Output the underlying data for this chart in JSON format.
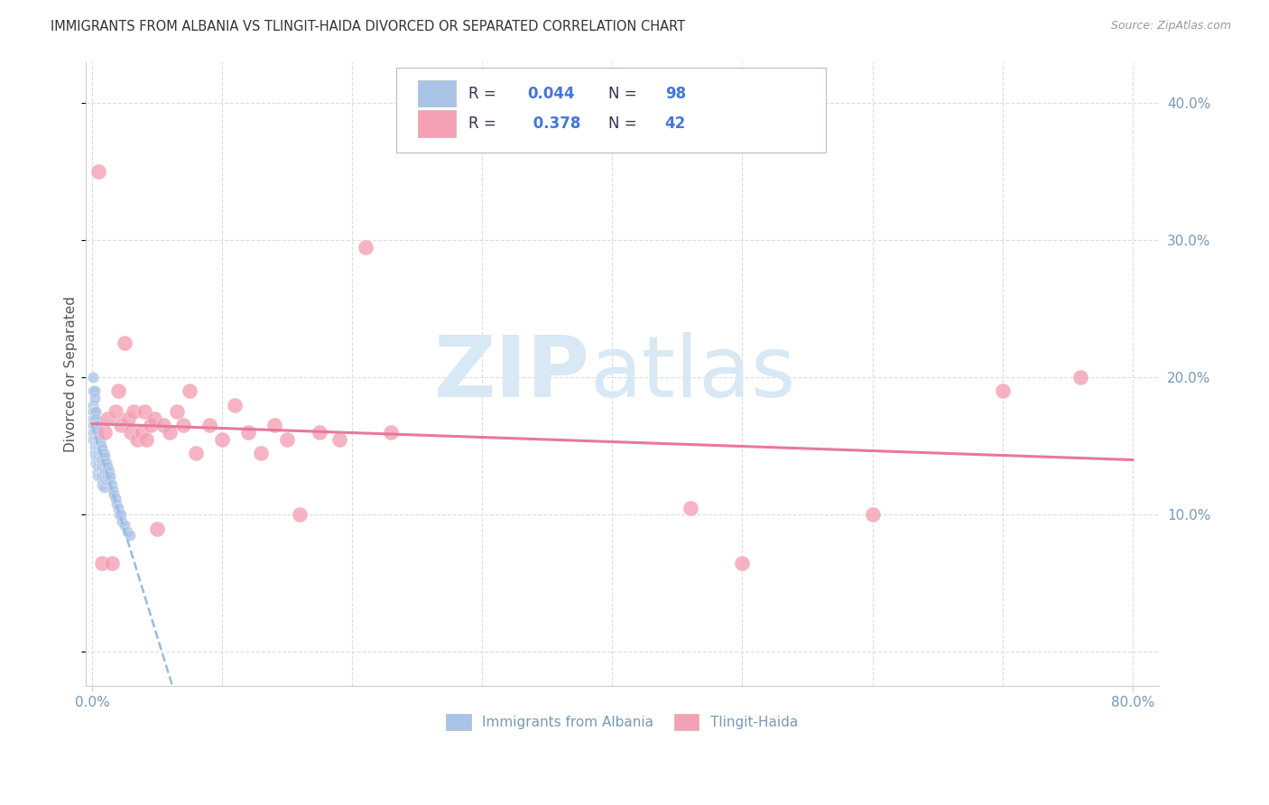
{
  "title": "IMMIGRANTS FROM ALBANIA VS TLINGIT-HAIDA DIVORCED OR SEPARATED CORRELATION CHART",
  "source": "Source: ZipAtlas.com",
  "ylabel": "Divorced or Separated",
  "xlim": [
    -0.005,
    0.82
  ],
  "ylim": [
    -0.025,
    0.43
  ],
  "x_ticks": [
    0.0,
    0.1,
    0.2,
    0.3,
    0.4,
    0.5,
    0.6,
    0.7,
    0.8
  ],
  "y_ticks": [
    0.0,
    0.1,
    0.2,
    0.3,
    0.4
  ],
  "y_tick_labels": [
    "",
    "10.0%",
    "20.0%",
    "30.0%",
    "40.0%"
  ],
  "albania_color": "#aac4e8",
  "tlingit_color": "#f4a0b5",
  "albania_R": 0.044,
  "albania_N": 98,
  "tlingit_R": 0.378,
  "tlingit_N": 42,
  "legend_val_color": "#4477dd",
  "legend_label_color": "#333355",
  "watermark_zip": "ZIP",
  "watermark_atlas": "atlas",
  "watermark_color": "#d8e8f4",
  "background_color": "#ffffff",
  "grid_color": "#dddddd",
  "tick_color": "#7799bb",
  "albania_trend_color": "#99bbdd",
  "tlingit_trend_color": "#e8789a",
  "albania_x": [
    0.001,
    0.001,
    0.001,
    0.001,
    0.001,
    0.001,
    0.001,
    0.001,
    0.002,
    0.002,
    0.002,
    0.002,
    0.002,
    0.002,
    0.002,
    0.002,
    0.002,
    0.003,
    0.003,
    0.003,
    0.003,
    0.003,
    0.003,
    0.003,
    0.003,
    0.003,
    0.003,
    0.003,
    0.004,
    0.004,
    0.004,
    0.004,
    0.004,
    0.004,
    0.004,
    0.004,
    0.004,
    0.004,
    0.004,
    0.004,
    0.005,
    0.005,
    0.005,
    0.005,
    0.005,
    0.005,
    0.005,
    0.005,
    0.005,
    0.005,
    0.006,
    0.006,
    0.006,
    0.006,
    0.006,
    0.006,
    0.006,
    0.007,
    0.007,
    0.007,
    0.007,
    0.007,
    0.007,
    0.008,
    0.008,
    0.008,
    0.008,
    0.008,
    0.008,
    0.009,
    0.009,
    0.009,
    0.009,
    0.009,
    0.01,
    0.01,
    0.01,
    0.01,
    0.011,
    0.011,
    0.011,
    0.012,
    0.012,
    0.013,
    0.013,
    0.014,
    0.015,
    0.016,
    0.017,
    0.018,
    0.019,
    0.02,
    0.021,
    0.022,
    0.023,
    0.025,
    0.027,
    0.029
  ],
  "albania_y": [
    0.2,
    0.19,
    0.18,
    0.175,
    0.17,
    0.165,
    0.16,
    0.155,
    0.19,
    0.185,
    0.175,
    0.17,
    0.165,
    0.16,
    0.155,
    0.15,
    0.145,
    0.175,
    0.17,
    0.165,
    0.16,
    0.155,
    0.152,
    0.15,
    0.148,
    0.145,
    0.142,
    0.138,
    0.165,
    0.162,
    0.158,
    0.155,
    0.152,
    0.15,
    0.148,
    0.145,
    0.142,
    0.138,
    0.135,
    0.13,
    0.16,
    0.158,
    0.155,
    0.152,
    0.148,
    0.145,
    0.142,
    0.138,
    0.135,
    0.128,
    0.155,
    0.152,
    0.148,
    0.145,
    0.14,
    0.135,
    0.128,
    0.15,
    0.148,
    0.145,
    0.14,
    0.135,
    0.128,
    0.148,
    0.145,
    0.14,
    0.135,
    0.128,
    0.122,
    0.145,
    0.14,
    0.135,
    0.128,
    0.12,
    0.142,
    0.138,
    0.132,
    0.125,
    0.138,
    0.132,
    0.125,
    0.135,
    0.128,
    0.132,
    0.125,
    0.128,
    0.122,
    0.118,
    0.115,
    0.112,
    0.108,
    0.105,
    0.1,
    0.1,
    0.095,
    0.092,
    0.088,
    0.085
  ],
  "tlingit_x": [
    0.005,
    0.008,
    0.01,
    0.012,
    0.015,
    0.018,
    0.02,
    0.022,
    0.025,
    0.028,
    0.03,
    0.032,
    0.035,
    0.038,
    0.04,
    0.042,
    0.045,
    0.048,
    0.05,
    0.055,
    0.06,
    0.065,
    0.07,
    0.075,
    0.08,
    0.09,
    0.1,
    0.11,
    0.12,
    0.13,
    0.14,
    0.15,
    0.16,
    0.175,
    0.19,
    0.21,
    0.23,
    0.46,
    0.5,
    0.6,
    0.7,
    0.76
  ],
  "tlingit_y": [
    0.35,
    0.065,
    0.16,
    0.17,
    0.065,
    0.175,
    0.19,
    0.165,
    0.225,
    0.17,
    0.16,
    0.175,
    0.155,
    0.16,
    0.175,
    0.155,
    0.165,
    0.17,
    0.09,
    0.165,
    0.16,
    0.175,
    0.165,
    0.19,
    0.145,
    0.165,
    0.155,
    0.18,
    0.16,
    0.145,
    0.165,
    0.155,
    0.1,
    0.16,
    0.155,
    0.295,
    0.16,
    0.105,
    0.065,
    0.1,
    0.19,
    0.2
  ]
}
